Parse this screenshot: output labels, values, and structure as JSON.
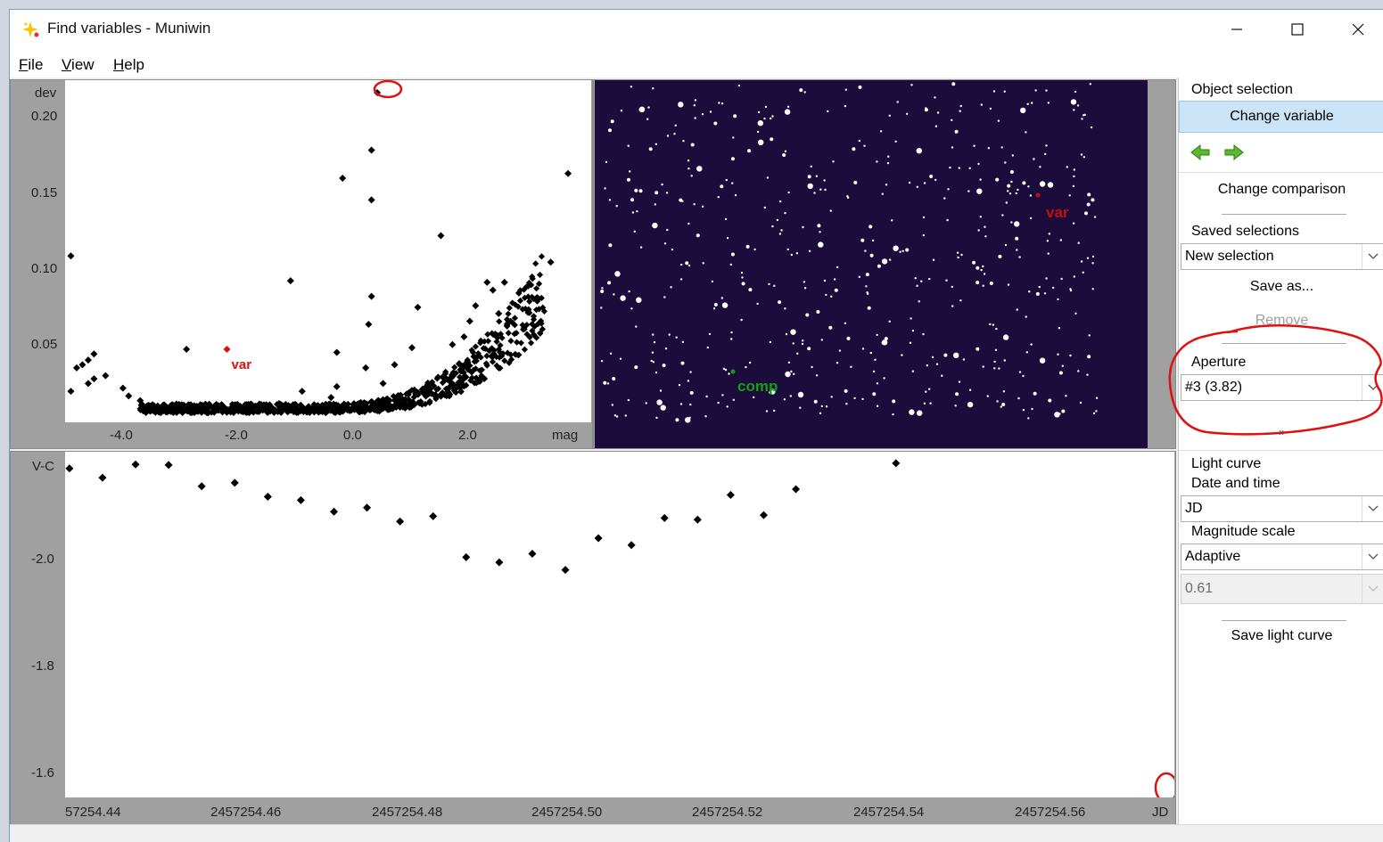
{
  "window": {
    "title": "Find variables - Muniwin"
  },
  "menu": [
    {
      "label": "File",
      "u": "F",
      "rest": "ile"
    },
    {
      "label": "View",
      "u": "V",
      "rest": "iew"
    },
    {
      "label": "Help",
      "u": "H",
      "rest": "elp"
    }
  ],
  "scatter_plot": {
    "y_axis_label": "dev",
    "y_ticks": [
      "0.20",
      "0.15",
      "0.10",
      "0.05"
    ],
    "x_ticks": [
      "-4.0",
      "-2.0",
      "0.0",
      "2.0"
    ],
    "x_axis_label": "mag",
    "var_label": "var"
  },
  "chart_image": {
    "var_label": "var",
    "comp_label": "comp"
  },
  "light_curve": {
    "y_axis_label": "V-C",
    "y_ticks": [
      "-2.0",
      "-1.8",
      "-1.6"
    ],
    "x_ticks": [
      "57254.44",
      "2457254.46",
      "2457254.48",
      "2457254.50",
      "2457254.52",
      "2457254.54",
      "2457254.56"
    ],
    "x_axis_label": "JD"
  },
  "sidebar": {
    "object_selection": "Object selection",
    "change_variable": "Change variable",
    "change_comparison": "Change comparison",
    "saved_selections": "Saved selections",
    "saved_value": "New selection",
    "save_as": "Save as...",
    "remove": "Remove",
    "aperture": "Aperture",
    "aperture_value": "#3 (3.82)",
    "more": "»",
    "light_curve": "Light curve",
    "date_time": "Date and time",
    "date_value": "JD",
    "mag_scale": "Magnitude scale",
    "mag_value": "Adaptive",
    "mag_range": "0.61",
    "save_light_curve": "Save light curve"
  },
  "colors": {
    "chart_bg": "#1c0c3c",
    "var": "#e01010",
    "comp": "#10a010",
    "highlight": "#cce4f7",
    "annotation": "#e01010"
  },
  "chart_data": [
    {
      "type": "scatter",
      "title": "",
      "xlabel": "mag",
      "ylabel": "dev",
      "xlim": [
        -4.9,
        4.2
      ],
      "ylim": [
        0,
        0.22
      ],
      "x_ticks": [
        "-4.0",
        "-2.0",
        "0.0",
        "2.0"
      ],
      "y_ticks": [
        "0.20",
        "0.15",
        "0.10",
        "0.05"
      ],
      "points": [
        [
          -4.8,
          0.107
        ],
        [
          -4.8,
          0.02
        ],
        [
          -4.7,
          0.035
        ],
        [
          -4.6,
          0.037
        ],
        [
          -4.5,
          0.04
        ],
        [
          -4.4,
          0.044
        ],
        [
          -4.4,
          0.028
        ],
        [
          -4.5,
          0.025
        ],
        [
          -4.2,
          0.03
        ],
        [
          -3.9,
          0.022
        ],
        [
          -3.8,
          0.017
        ],
        [
          -3.6,
          0.014
        ],
        [
          -3.4,
          0.01
        ],
        [
          -3.2,
          0.008
        ],
        [
          -2.8,
          0.047
        ],
        [
          -2.6,
          0.007
        ],
        [
          -2.3,
          0.008
        ],
        [
          -1.9,
          0.009
        ],
        [
          -1.5,
          0.01
        ],
        [
          -1.2,
          0.012
        ],
        [
          -1.0,
          0.091
        ],
        [
          -0.8,
          0.02
        ],
        [
          -0.6,
          0.009
        ],
        [
          -0.3,
          0.016
        ],
        [
          -0.2,
          0.023
        ],
        [
          -0.2,
          0.045
        ],
        [
          -0.1,
          0.157
        ],
        [
          0.3,
          0.035
        ],
        [
          0.4,
          0.175
        ],
        [
          0.4,
          0.143
        ],
        [
          0.4,
          0.081
        ],
        [
          0.35,
          0.063
        ],
        [
          0.5,
          0.212
        ],
        [
          0.6,
          0.025
        ],
        [
          0.8,
          0.037
        ],
        [
          1.1,
          0.048
        ],
        [
          1.2,
          0.074
        ],
        [
          1.3,
          0.02
        ],
        [
          1.6,
          0.12
        ],
        [
          1.8,
          0.05
        ],
        [
          2.0,
          0.055
        ],
        [
          2.1,
          0.065
        ],
        [
          2.2,
          0.075
        ],
        [
          2.4,
          0.09
        ],
        [
          2.5,
          0.085
        ],
        [
          2.6,
          0.07
        ],
        [
          2.7,
          0.09
        ],
        [
          3.5,
          0.103
        ],
        [
          3.8,
          0.16
        ]
      ],
      "highlight": {
        "label": "var",
        "x": -2.1,
        "y": 0.047
      }
    },
    {
      "type": "scatter",
      "title": "",
      "xlabel": "JD",
      "ylabel": "V-C",
      "xlim": [
        2457254.44,
        2457254.5675
      ],
      "ylim": [
        -1.6,
        -2.2
      ],
      "x_ticks": [
        "57254.44",
        "2457254.46",
        "2457254.48",
        "2457254.50",
        "2457254.52",
        "2457254.54",
        "2457254.56"
      ],
      "y_ticks": [
        "-2.0",
        "-1.8",
        "-1.6"
      ],
      "points": [
        [
          2457254.4405,
          -2.171
        ],
        [
          2457254.4443,
          -2.155
        ],
        [
          2457254.4481,
          -2.178
        ],
        [
          2457254.4519,
          -2.177
        ],
        [
          2457254.4557,
          -2.14
        ],
        [
          2457254.4595,
          -2.146
        ],
        [
          2457254.4633,
          -2.122
        ],
        [
          2457254.4671,
          -2.116
        ],
        [
          2457254.4709,
          -2.096
        ],
        [
          2457254.4747,
          -2.103
        ],
        [
          2457254.4785,
          -2.079
        ],
        [
          2457254.4823,
          -2.088
        ],
        [
          2457254.4861,
          -2.017
        ],
        [
          2457254.4899,
          -2.008
        ],
        [
          2457254.4937,
          -2.023
        ],
        [
          2457254.4975,
          -1.995
        ],
        [
          2457254.5013,
          -2.05
        ],
        [
          2457254.5051,
          -2.038
        ],
        [
          2457254.5089,
          -2.085
        ],
        [
          2457254.5127,
          -2.082
        ],
        [
          2457254.5165,
          -2.125
        ],
        [
          2457254.5203,
          -2.09
        ],
        [
          2457254.524,
          -2.135
        ],
        [
          2457254.5355,
          -2.18
        ],
        [
          2457254.567,
          -1.575
        ]
      ]
    }
  ]
}
